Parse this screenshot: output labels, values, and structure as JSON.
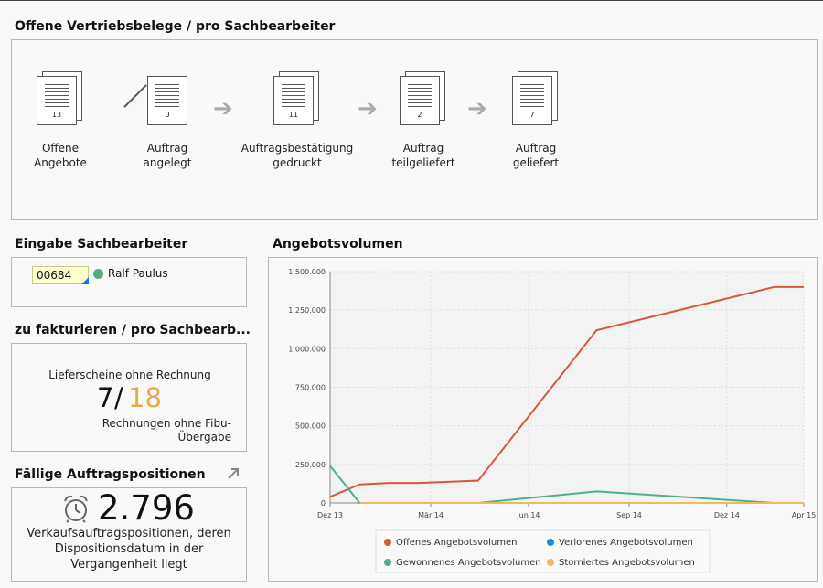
{
  "flow": {
    "title": "Offene Vertriebsbelege / pro Sachbearbeiter",
    "steps": [
      {
        "count": "13",
        "label": "Offene\nAngebote"
      },
      {
        "count": "0",
        "label": "Auftrag\nangelegt"
      },
      {
        "count": "11",
        "label": "Auftragsbestätigung\ngedruckt"
      },
      {
        "count": "2",
        "label": "Auftrag\nteilgeliefert"
      },
      {
        "count": "7",
        "label": "Auftrag\ngeliefert"
      }
    ]
  },
  "employee": {
    "title": "Eingabe Sachbearbeiter",
    "input_value": "00684",
    "name": "Ralf Paulus",
    "status_color": "#4caf82"
  },
  "invoicing": {
    "title": "zu fakturieren / pro Sachbearb...",
    "top_label": "Lieferscheine ohne Rechnung",
    "value_a": "7",
    "separator": "/",
    "value_b": "18",
    "bottom_label": "Rechnungen ohne Fibu-\nÜbergabe",
    "value_b_color": "#e8a94a"
  },
  "due": {
    "title": "Fällige Auftragspositionen",
    "expand_icon": "arrow-up-right-icon",
    "clock_icon": "alarm-clock-icon",
    "value": "2.796",
    "description": "Verkaufsauftragspositionen, deren\nDispositionsdatum in der\nVergangenheit liegt"
  },
  "chart_data": {
    "type": "line",
    "title": "Angebotsvolumen",
    "x_labels": [
      "Dez 13",
      "Mär 14",
      "Jun 14",
      "Sep 14",
      "Dez 14",
      "Apr 15"
    ],
    "y_ticks": [
      "0",
      "250.000",
      "500.000",
      "750.000",
      "1.000.000",
      "1.250.000",
      "1.500.000"
    ],
    "ylim": [
      0,
      1500000
    ],
    "xlim": [
      0,
      16
    ],
    "grid": true,
    "legend_position": "bottom",
    "series": [
      {
        "name": "Offenes Angebotsvolumen",
        "color": "#d9573f",
        "x": [
          0,
          1,
          2,
          3,
          5,
          9,
          15,
          16
        ],
        "y": [
          40000,
          120000,
          130000,
          130000,
          145000,
          1120000,
          1400000,
          1400000
        ]
      },
      {
        "name": "Verlorenes Angebotsvolumen",
        "color": "#1e88e5",
        "x": [],
        "y": []
      },
      {
        "name": "Gewonnenes Angebotsvolumen",
        "color": "#4caf8f",
        "x": [
          0,
          1,
          5,
          9,
          15
        ],
        "y": [
          240000,
          0,
          0,
          75000,
          0
        ]
      },
      {
        "name": "Storniertes Angebotsvolumen",
        "color": "#f0b860",
        "x": [
          1,
          16
        ],
        "y": [
          0,
          0
        ]
      }
    ]
  }
}
